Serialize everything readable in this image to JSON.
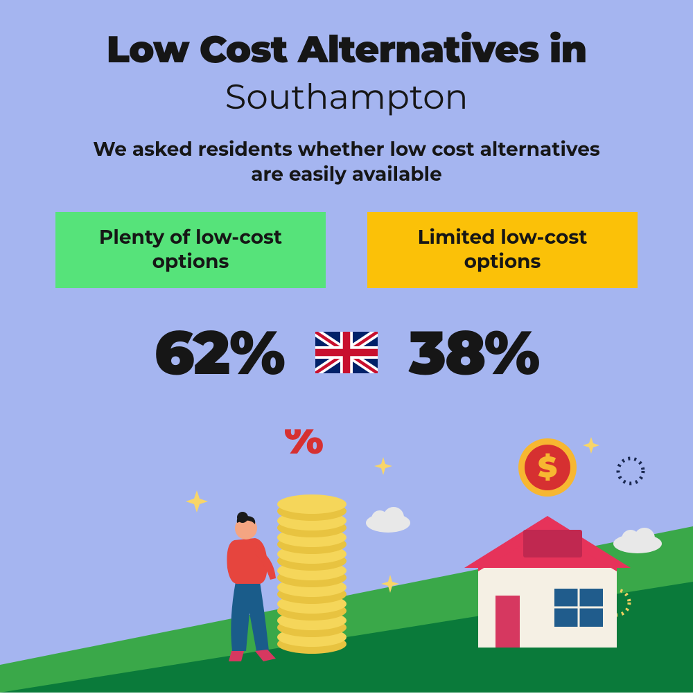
{
  "background_color": "#a5b5f0",
  "text_color": "#161616",
  "title": {
    "line1": "Low Cost Alternatives in",
    "line2": "Southampton"
  },
  "subtitle": "We asked residents whether low cost alternatives are easily available",
  "options": {
    "left": {
      "label": "Plenty of low-cost options",
      "bg_color": "#56e37a",
      "value": "62%"
    },
    "right": {
      "label": "Limited low-cost options",
      "bg_color": "#fbc108",
      "value": "38%"
    }
  },
  "flag": {
    "name": "uk-flag",
    "bg": "#012169",
    "red": "#C8102E",
    "white": "#ffffff"
  },
  "illustration": {
    "ground_green": "#3aa849",
    "ground_dark": "#0a7a3a",
    "house_wall": "#f5f0e4",
    "house_roof": "#e6335a",
    "house_door": "#d63860",
    "house_window": "#205c8c",
    "coin_gold": "#f5d65a",
    "coin_dark": "#e8c340",
    "dollar_coin": "#f7b731",
    "dollar_red": "#d63031",
    "person_top": "#e6453e",
    "person_bottom": "#1a5c8a",
    "person_skin": "#f4a582",
    "person_hair": "#1a1a1a",
    "percent_red": "#d63031",
    "sparkle": "#f8d568",
    "cloud": "#e8e8e8",
    "dotted_dark": "#1a2850",
    "dotted_light": "#f0d060"
  }
}
